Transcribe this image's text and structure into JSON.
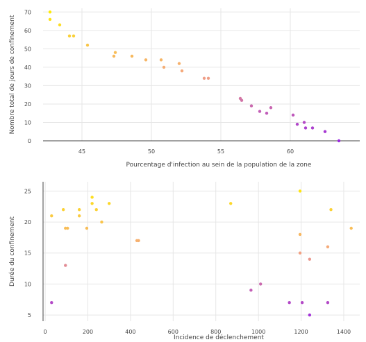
{
  "chart_data": [
    {
      "type": "scatter",
      "xlabel": "Pourcentage d'infection au sein de la population de la zone",
      "ylabel": "Nombre total de jours de confinement",
      "xticks": [
        "45",
        "50",
        "55",
        "60"
      ],
      "yticks": [
        "0",
        "10",
        "20",
        "30",
        "40",
        "50",
        "60",
        "70"
      ],
      "xlim": [
        42.2,
        65.0
      ],
      "ylim": [
        0,
        72
      ],
      "color_scale": [
        "#ffee00",
        "#f4a582",
        "#9b27e0"
      ],
      "points": [
        {
          "x": 42.7,
          "y": 70
        },
        {
          "x": 42.7,
          "y": 66
        },
        {
          "x": 43.4,
          "y": 63
        },
        {
          "x": 44.1,
          "y": 57
        },
        {
          "x": 44.4,
          "y": 57
        },
        {
          "x": 45.4,
          "y": 52
        },
        {
          "x": 47.3,
          "y": 46
        },
        {
          "x": 47.4,
          "y": 48
        },
        {
          "x": 48.6,
          "y": 46
        },
        {
          "x": 49.6,
          "y": 44
        },
        {
          "x": 50.7,
          "y": 44
        },
        {
          "x": 50.9,
          "y": 40
        },
        {
          "x": 52.0,
          "y": 42
        },
        {
          "x": 52.2,
          "y": 38
        },
        {
          "x": 53.8,
          "y": 34
        },
        {
          "x": 54.1,
          "y": 34
        },
        {
          "x": 56.4,
          "y": 23
        },
        {
          "x": 56.5,
          "y": 22
        },
        {
          "x": 57.2,
          "y": 19
        },
        {
          "x": 57.8,
          "y": 16
        },
        {
          "x": 58.3,
          "y": 15
        },
        {
          "x": 58.6,
          "y": 18
        },
        {
          "x": 60.2,
          "y": 14
        },
        {
          "x": 60.5,
          "y": 9
        },
        {
          "x": 61.0,
          "y": 10
        },
        {
          "x": 61.1,
          "y": 7
        },
        {
          "x": 61.6,
          "y": 7
        },
        {
          "x": 62.5,
          "y": 5
        },
        {
          "x": 63.5,
          "y": 0
        }
      ]
    },
    {
      "type": "scatter",
      "xlabel": "Incidence de déclenchement",
      "ylabel": "Durée du confinement",
      "xticks": [
        "0",
        "200",
        "400",
        "600",
        "800",
        "1000",
        "1200",
        "1400"
      ],
      "yticks": [
        "5",
        "10",
        "15",
        "20",
        "25"
      ],
      "xlim": [
        -10,
        1475
      ],
      "ylim": [
        4,
        26.5
      ],
      "color_scale": [
        "#ffee00",
        "#f4a582",
        "#9b27e0"
      ],
      "points": [
        {
          "x": 30,
          "y": 21
        },
        {
          "x": 30,
          "y": 7
        },
        {
          "x": 85,
          "y": 22
        },
        {
          "x": 95,
          "y": 19
        },
        {
          "x": 105,
          "y": 19
        },
        {
          "x": 95,
          "y": 13
        },
        {
          "x": 160,
          "y": 22
        },
        {
          "x": 160,
          "y": 21
        },
        {
          "x": 195,
          "y": 19
        },
        {
          "x": 220,
          "y": 24
        },
        {
          "x": 220,
          "y": 23
        },
        {
          "x": 240,
          "y": 22
        },
        {
          "x": 265,
          "y": 20
        },
        {
          "x": 300,
          "y": 23
        },
        {
          "x": 430,
          "y": 17
        },
        {
          "x": 438,
          "y": 17
        },
        {
          "x": 870,
          "y": 23
        },
        {
          "x": 965,
          "y": 9
        },
        {
          "x": 1010,
          "y": 10
        },
        {
          "x": 1145,
          "y": 7
        },
        {
          "x": 1195,
          "y": 25
        },
        {
          "x": 1195,
          "y": 18
        },
        {
          "x": 1195,
          "y": 15
        },
        {
          "x": 1205,
          "y": 7
        },
        {
          "x": 1240,
          "y": 14
        },
        {
          "x": 1240,
          "y": 5
        },
        {
          "x": 1325,
          "y": 16
        },
        {
          "x": 1325,
          "y": 7
        },
        {
          "x": 1340,
          "y": 22
        },
        {
          "x": 1435,
          "y": 19
        }
      ]
    }
  ]
}
